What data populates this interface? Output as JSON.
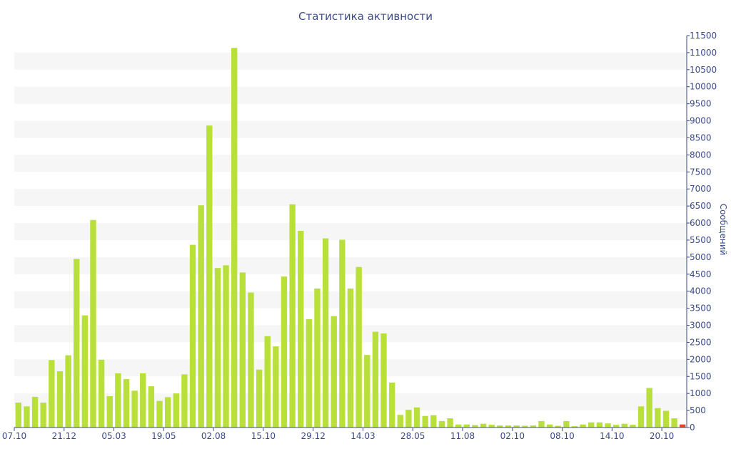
{
  "chart_data": {
    "type": "bar",
    "title": "Статистика активности",
    "xlabel": "",
    "ylabel": "Сообщений",
    "ylim": [
      0,
      11500
    ],
    "y_ticks": [
      0,
      500,
      1000,
      1500,
      2000,
      2500,
      3000,
      3500,
      4000,
      4500,
      5000,
      5500,
      6000,
      6500,
      7000,
      7500,
      8000,
      8500,
      9000,
      9500,
      10000,
      10500,
      11000,
      11500
    ],
    "x_tick_labels": [
      {
        "index": 0,
        "label": "07.10"
      },
      {
        "index": 6,
        "label": "21.12"
      },
      {
        "index": 12,
        "label": "05.03"
      },
      {
        "index": 18,
        "label": "19.05"
      },
      {
        "index": 24,
        "label": "02.08"
      },
      {
        "index": 30,
        "label": "15.10"
      },
      {
        "index": 36,
        "label": "29.12"
      },
      {
        "index": 42,
        "label": "14.03"
      },
      {
        "index": 48,
        "label": "28.05"
      },
      {
        "index": 54,
        "label": "11.08"
      },
      {
        "index": 60,
        "label": "02.10"
      },
      {
        "index": 66,
        "label": "08.10"
      },
      {
        "index": 72,
        "label": "14.10"
      },
      {
        "index": 78,
        "label": "20.10"
      }
    ],
    "values": [
      730,
      620,
      900,
      730,
      1980,
      1650,
      2120,
      4950,
      3290,
      6090,
      1990,
      920,
      1590,
      1420,
      1080,
      1590,
      1210,
      780,
      890,
      1000,
      1560,
      5360,
      6520,
      8860,
      4680,
      4760,
      11140,
      4550,
      3960,
      1700,
      2680,
      2380,
      4430,
      6550,
      5770,
      3180,
      4080,
      5550,
      3270,
      5510,
      4080,
      4710,
      2130,
      2810,
      2760,
      1320,
      370,
      520,
      590,
      340,
      360,
      190,
      270,
      90,
      90,
      70,
      110,
      80,
      60,
      60,
      60,
      50,
      60,
      190,
      90,
      50,
      190,
      40,
      90,
      150,
      150,
      120,
      80,
      110,
      80,
      620,
      1160,
      570,
      490,
      270,
      90
    ],
    "series_colors": [
      "#b8df3a",
      "#d9482b"
    ],
    "last_bar_color": "#d9482b",
    "grid": "horizontal alternating bands",
    "y_axis_side": "right"
  }
}
